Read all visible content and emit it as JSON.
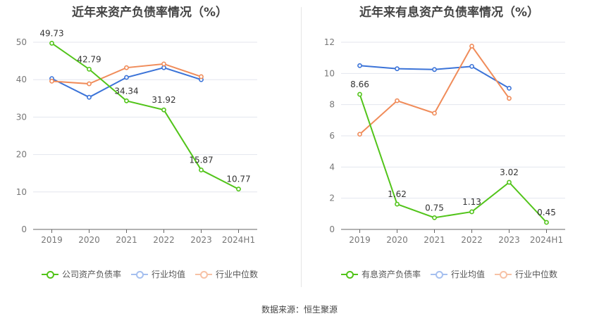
{
  "source": "数据来源：恒生聚源",
  "chart_data": [
    {
      "type": "line",
      "title": "近年来资产负债率情况（%）",
      "categories": [
        "2019",
        "2020",
        "2021",
        "2022",
        "2023",
        "2024H1"
      ],
      "ylim": [
        0,
        50
      ],
      "yticks": [
        0,
        10,
        20,
        30,
        40,
        50
      ],
      "grid": true,
      "legend_position": "bottom",
      "series": [
        {
          "name": "公司资产负债率",
          "color": "#52c41a",
          "values": [
            49.73,
            42.79,
            34.34,
            31.92,
            15.87,
            10.77
          ],
          "show_labels": true
        },
        {
          "name": "行业均值",
          "color": "#3b73d8",
          "values": [
            40.3,
            35.3,
            40.6,
            43.2,
            40.0,
            null
          ],
          "show_labels": false
        },
        {
          "name": "行业中位数",
          "color": "#f08c5a",
          "values": [
            39.6,
            38.9,
            43.2,
            44.2,
            40.8,
            null
          ],
          "show_labels": false
        }
      ]
    },
    {
      "type": "line",
      "title": "近年来有息资产负债率情况（%）",
      "categories": [
        "2019",
        "2020",
        "2021",
        "2022",
        "2023",
        "2024H1"
      ],
      "ylim": [
        0,
        12
      ],
      "yticks": [
        0,
        2,
        4,
        6,
        8,
        10,
        12
      ],
      "grid": true,
      "legend_position": "bottom",
      "series": [
        {
          "name": "有息资产负债率",
          "color": "#52c41a",
          "values": [
            8.66,
            1.62,
            0.75,
            1.13,
            3.02,
            0.45
          ],
          "show_labels": true
        },
        {
          "name": "行业均值",
          "color": "#3b73d8",
          "values": [
            10.5,
            10.3,
            10.25,
            10.45,
            9.05,
            null
          ],
          "show_labels": false
        },
        {
          "name": "行业中位数",
          "color": "#f08c5a",
          "values": [
            6.1,
            8.25,
            7.45,
            11.75,
            8.4,
            null
          ],
          "show_labels": false
        }
      ]
    }
  ]
}
